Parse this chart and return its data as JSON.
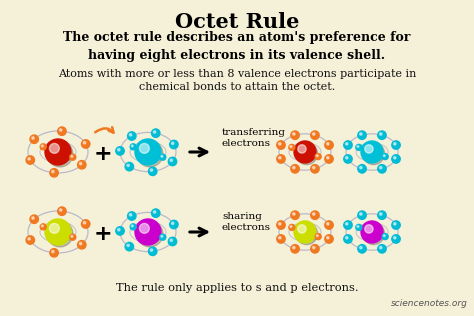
{
  "title": "Octet Rule",
  "subtitle": "The octet rule describes an atom's preference for\nhaving eight electrons in its valence shell.",
  "body_text": "Atoms with more or less than 8 valence electrons participate in\nchemical bonds to attain the octet.",
  "footer_text": "The rule only applies to s and p electrons.",
  "watermark": "sciencenotes.org",
  "bg_color": "#f5f0d8",
  "title_color": "#000000",
  "text_color": "#111111",
  "row1_label": "transferring\nelectrons",
  "row2_label": "sharing\nelectrons",
  "atom_red": "#cc1100",
  "atom_cyan": "#00c0d8",
  "atom_yellow": "#ccdd00",
  "atom_magenta": "#cc00cc",
  "orbit_orange": "#f07820",
  "orbit_cyan": "#00bcd4",
  "orbit_gray": "#b0b0c8",
  "arrow_color": "#111111",
  "curve_arrow_color": "#f07820"
}
